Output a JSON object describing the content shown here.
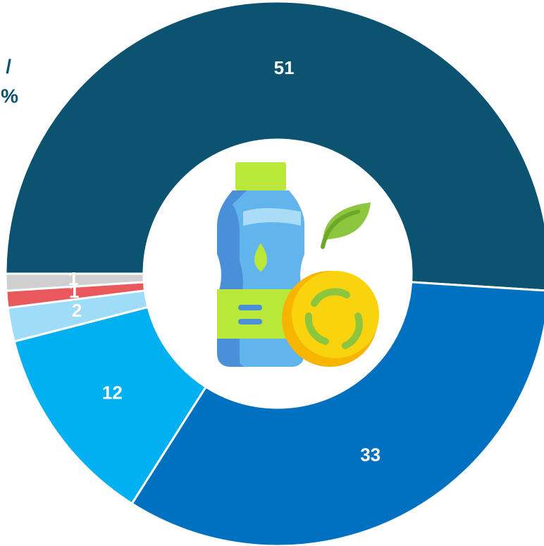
{
  "chart_data": {
    "type": "donut",
    "title_lines": [
      ": /",
      "%"
    ],
    "values": [
      51,
      33,
      12,
      2,
      1,
      1
    ],
    "colors": [
      "#0b5370",
      "#0070c0",
      "#00b0f0",
      "#9fdcf8",
      "#e8585c",
      "#cfcfcf"
    ],
    "start_angle": 270
  }
}
